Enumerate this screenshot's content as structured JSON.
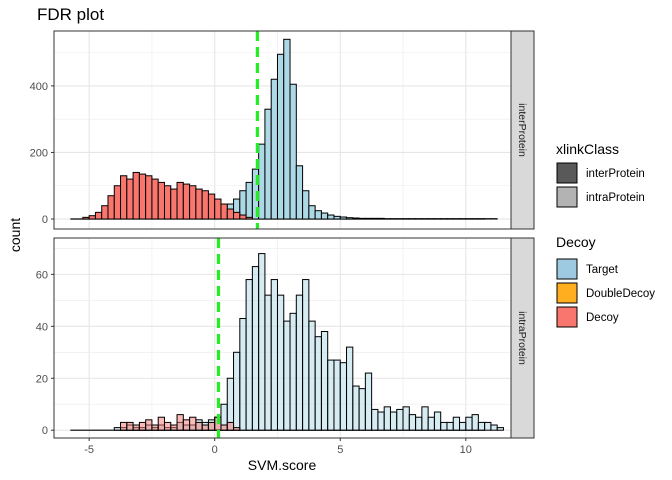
{
  "chart_data": {
    "type": "bar",
    "title": "FDR plot",
    "xlabel": "SVM.score",
    "ylabel": "count",
    "xlim": [
      -6.4,
      11.8
    ],
    "x_ticks": [
      -5,
      0,
      5,
      10
    ],
    "bin_width": 0.25,
    "x_start": -5.75,
    "x_end": 10.75,
    "grid": true,
    "legend_position": "right",
    "fill_colors": {
      "Target": "#add8e6",
      "DoubleDecoy": "#ffa500",
      "Decoy": "#f8766d"
    },
    "legends": [
      {
        "title": "xlinkClass",
        "items": [
          {
            "label": "interProtein",
            "color": "#595959"
          },
          {
            "label": "intraProtein",
            "color": "#b3b3b3"
          }
        ]
      },
      {
        "title": "Decoy",
        "items": [
          {
            "label": "Target",
            "color": "#9ecae1"
          },
          {
            "label": "DoubleDecoy",
            "color": "#ffae1f"
          },
          {
            "label": "Decoy",
            "color": "#f8766d"
          }
        ]
      }
    ],
    "panels": [
      {
        "strip": "interProtein",
        "ylim": [
          -30,
          565
        ],
        "y_ticks": [
          0,
          200,
          400
        ],
        "threshold": 1.7,
        "series": [
          {
            "name": "Target",
            "start": -2.75,
            "values": [
              2,
              3,
              4,
              5,
              6,
              8,
              10,
              13,
              15,
              18,
              22,
              28,
              35,
              45,
              60,
              85,
              110,
              150,
              225,
              330,
              420,
              495,
              540,
              405,
              160,
              85,
              40,
              25,
              18,
              12,
              8,
              6,
              4,
              3,
              2,
              2,
              2,
              2,
              1,
              1,
              1,
              1,
              1,
              1,
              1,
              1,
              1,
              1,
              1,
              1,
              1,
              1,
              1,
              1,
              1,
              1
            ]
          },
          {
            "name": "Decoy",
            "start": -5.25,
            "values": [
              5,
              10,
              20,
              40,
              70,
              100,
              130,
              120,
              140,
              135,
              130,
              120,
              110,
              100,
              90,
              110,
              105,
              100,
              90,
              85,
              75,
              60,
              45,
              30,
              20,
              12,
              5
            ]
          }
        ]
      },
      {
        "strip": "intraProtein",
        "ylim": [
          -3,
          74
        ],
        "y_ticks": [
          0,
          20,
          40,
          60
        ],
        "threshold": 0.15,
        "series": [
          {
            "name": "Target",
            "start": -4.0,
            "values": [
              1,
              1,
              2,
              1,
              1,
              2,
              1,
              2,
              1,
              1,
              3,
              2,
              2,
              4,
              3,
              4,
              5,
              10,
              20,
              30,
              43,
              58,
              63,
              68,
              52,
              58,
              52,
              42,
              45,
              52,
              58,
              42,
              36,
              38,
              27,
              27,
              26,
              32,
              17,
              16,
              22,
              8,
              7,
              9,
              7,
              8,
              9,
              6,
              5,
              9,
              5,
              7,
              3,
              3,
              5,
              3,
              5,
              6,
              3,
              3,
              2,
              1
            ]
          },
          {
            "name": "Decoy",
            "start": -3.75,
            "values": [
              3,
              3,
              2,
              3,
              4,
              2,
              5,
              3,
              2,
              6,
              4,
              5,
              3,
              2,
              3,
              5,
              2,
              3,
              1
            ]
          }
        ]
      }
    ]
  }
}
